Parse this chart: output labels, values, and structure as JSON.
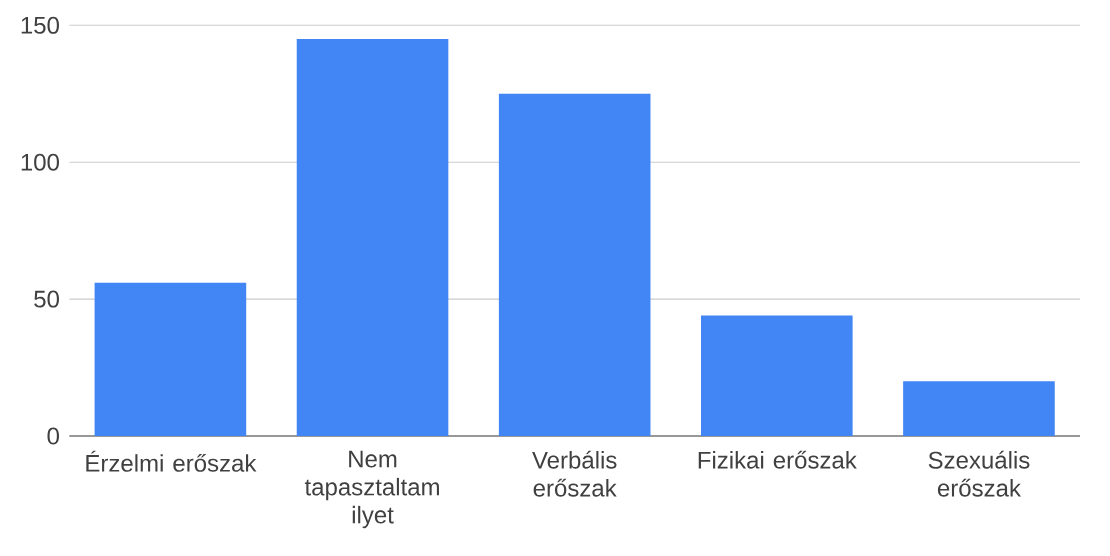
{
  "chart_data": {
    "type": "bar",
    "categories": [
      "Érzelmi erőszak",
      "Nem tapasztaltam ilyet",
      "Verbális erőszak",
      "Fizikai erőszak",
      "Szexuális erőszak"
    ],
    "values": [
      56,
      145,
      125,
      44,
      20
    ],
    "color": "#4285f4",
    "ylim": [
      0,
      150
    ],
    "yticks": [
      0,
      50,
      100,
      150
    ],
    "grid": "y"
  }
}
